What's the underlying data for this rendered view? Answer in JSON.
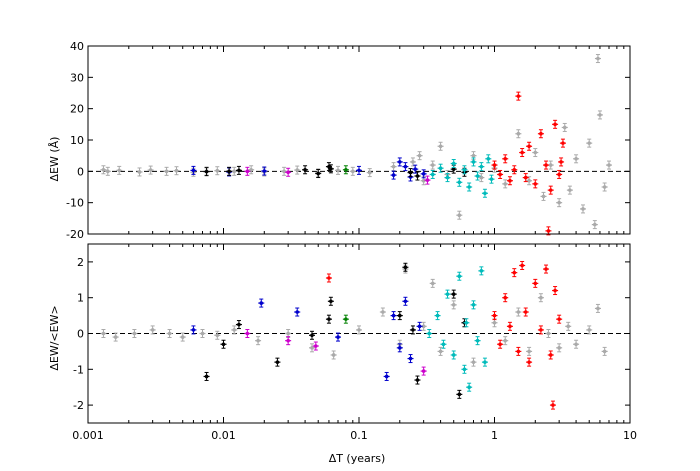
{
  "chart_data": [
    {
      "id": "top",
      "type": "scatter",
      "xscale": "log",
      "xlim": [
        0.001,
        10
      ],
      "ylim": [
        -20,
        40
      ],
      "yticks": [
        -20,
        -10,
        0,
        10,
        20,
        30,
        40
      ],
      "ylabel": "ΔEW (Å)",
      "reference_line": 0,
      "series": [
        {
          "color": "#aaaaaa",
          "points": [
            [
              0.0013,
              0.5
            ],
            [
              0.0014,
              0.0
            ],
            [
              0.0017,
              0.3
            ],
            [
              0.0024,
              -0.2
            ],
            [
              0.0029,
              0.4
            ],
            [
              0.0038,
              0.0
            ],
            [
              0.0045,
              0.2
            ],
            [
              0.006,
              -0.3
            ],
            [
              0.0075,
              0.1
            ],
            [
              0.009,
              0.2
            ],
            [
              0.012,
              0.0
            ],
            [
              0.016,
              0.5
            ],
            [
              0.02,
              -0.2
            ],
            [
              0.028,
              0.0
            ],
            [
              0.035,
              0.4
            ],
            [
              0.05,
              -0.5
            ],
            [
              0.07,
              0.3
            ],
            [
              0.09,
              0.0
            ],
            [
              0.12,
              -0.4
            ],
            [
              0.18,
              1.5
            ],
            [
              0.25,
              3.0
            ],
            [
              0.28,
              5.0
            ],
            [
              0.3,
              -3.0
            ],
            [
              0.35,
              2.0
            ],
            [
              0.4,
              8.0
            ],
            [
              0.45,
              -1.0
            ],
            [
              0.55,
              -14.0
            ],
            [
              0.7,
              5.0
            ],
            [
              0.8,
              -2.0
            ],
            [
              1.0,
              1.0
            ],
            [
              1.2,
              -4.0
            ],
            [
              1.5,
              12.0
            ],
            [
              1.8,
              -3.0
            ],
            [
              2.0,
              6.0
            ],
            [
              2.3,
              -8.0
            ],
            [
              2.6,
              2.0
            ],
            [
              3.0,
              -10.0
            ],
            [
              3.3,
              14.0
            ],
            [
              3.6,
              -6.0
            ],
            [
              4.0,
              4.0
            ],
            [
              4.5,
              -12.0
            ],
            [
              5.0,
              9.0
            ],
            [
              5.5,
              -17.0
            ],
            [
              5.8,
              36.0
            ],
            [
              6.0,
              18.0
            ],
            [
              6.5,
              -5.0
            ],
            [
              7.0,
              2.0
            ]
          ]
        },
        {
          "color": "#0000cc",
          "points": [
            [
              0.006,
              0.3
            ],
            [
              0.011,
              -0.2
            ],
            [
              0.02,
              0.1
            ],
            [
              0.1,
              0.3
            ],
            [
              0.18,
              -1.2
            ],
            [
              0.2,
              3.0
            ],
            [
              0.22,
              1.5
            ],
            [
              0.24,
              -1.8
            ],
            [
              0.26,
              0.7
            ],
            [
              0.3,
              -0.8
            ]
          ]
        },
        {
          "color": "#000000",
          "points": [
            [
              0.0075,
              -0.1
            ],
            [
              0.011,
              0.0
            ],
            [
              0.013,
              0.3
            ],
            [
              0.04,
              0.5
            ],
            [
              0.05,
              -0.7
            ],
            [
              0.06,
              1.5
            ],
            [
              0.062,
              0.8
            ],
            [
              0.24,
              -0.4
            ],
            [
              0.27,
              -1.5
            ],
            [
              0.5,
              0.7
            ],
            [
              0.6,
              -0.3
            ]
          ]
        },
        {
          "color": "#cc00cc",
          "points": [
            [
              0.015,
              0.0
            ],
            [
              0.03,
              -0.3
            ],
            [
              0.32,
              -2.8
            ]
          ]
        },
        {
          "color": "#008000",
          "points": [
            [
              0.08,
              0.5
            ]
          ]
        },
        {
          "color": "#00bbbb",
          "points": [
            [
              0.35,
              -1.0
            ],
            [
              0.4,
              1.0
            ],
            [
              0.45,
              -2.0
            ],
            [
              0.5,
              2.5
            ],
            [
              0.55,
              -3.5
            ],
            [
              0.6,
              0.5
            ],
            [
              0.65,
              -5.0
            ],
            [
              0.7,
              3.0
            ],
            [
              0.75,
              -1.5
            ],
            [
              0.8,
              1.5
            ],
            [
              0.85,
              -7.0
            ],
            [
              0.9,
              4.0
            ],
            [
              0.95,
              -2.5
            ]
          ]
        },
        {
          "color": "#ff0000",
          "points": [
            [
              1.0,
              2.0
            ],
            [
              1.1,
              -1.0
            ],
            [
              1.2,
              4.0
            ],
            [
              1.3,
              -3.0
            ],
            [
              1.5,
              24.0
            ],
            [
              1.6,
              6.0
            ],
            [
              1.7,
              -2.0
            ],
            [
              1.8,
              8.0
            ],
            [
              2.0,
              -4.0
            ],
            [
              2.2,
              12.0
            ],
            [
              2.4,
              2.0
            ],
            [
              2.6,
              -6.0
            ],
            [
              2.8,
              15.0
            ],
            [
              3.0,
              -1.0
            ],
            [
              3.2,
              9.0
            ],
            [
              2.5,
              -19.0
            ],
            [
              1.4,
              0.5
            ],
            [
              3.1,
              3.0
            ]
          ]
        }
      ]
    },
    {
      "id": "bottom",
      "type": "scatter",
      "xscale": "log",
      "xlim": [
        0.001,
        10
      ],
      "ylim": [
        -2.5,
        2.5
      ],
      "yticks": [
        -2,
        -1,
        0,
        1,
        2
      ],
      "xticks": [
        0.001,
        0.01,
        0.1,
        1,
        10
      ],
      "xticklabels": [
        "0.001",
        "0.01",
        "0.1",
        "1",
        "10"
      ],
      "xlabel": "ΔT (years)",
      "ylabel": "ΔEW/<EW>",
      "reference_line": 0,
      "series": [
        {
          "color": "#aaaaaa",
          "points": [
            [
              0.0013,
              0.0
            ],
            [
              0.0016,
              -0.1
            ],
            [
              0.0022,
              0.0
            ],
            [
              0.003,
              0.1
            ],
            [
              0.004,
              0.0
            ],
            [
              0.005,
              -0.1
            ],
            [
              0.007,
              0.0
            ],
            [
              0.009,
              -0.05
            ],
            [
              0.012,
              0.1
            ],
            [
              0.018,
              -0.2
            ],
            [
              0.03,
              0.0
            ],
            [
              0.045,
              -0.4
            ],
            [
              0.065,
              -0.6
            ],
            [
              0.1,
              0.1
            ],
            [
              0.15,
              0.6
            ],
            [
              0.2,
              -0.3
            ],
            [
              0.22,
              1.8
            ],
            [
              0.3,
              0.2
            ],
            [
              0.35,
              1.4
            ],
            [
              0.4,
              -0.5
            ],
            [
              0.5,
              0.8
            ],
            [
              0.7,
              -0.8
            ],
            [
              1.0,
              0.3
            ],
            [
              1.2,
              -0.2
            ],
            [
              1.5,
              0.6
            ],
            [
              1.8,
              -0.5
            ],
            [
              2.2,
              1.0
            ],
            [
              2.5,
              0.0
            ],
            [
              3.0,
              -0.4
            ],
            [
              3.5,
              0.2
            ],
            [
              4.0,
              -0.3
            ],
            [
              5.0,
              0.1
            ],
            [
              5.8,
              0.7
            ],
            [
              6.5,
              -0.5
            ]
          ]
        },
        {
          "color": "#0000cc",
          "points": [
            [
              0.006,
              0.1
            ],
            [
              0.019,
              0.85
            ],
            [
              0.035,
              0.6
            ],
            [
              0.07,
              -0.1
            ],
            [
              0.16,
              -1.2
            ],
            [
              0.18,
              0.5
            ],
            [
              0.2,
              -0.4
            ],
            [
              0.22,
              0.9
            ],
            [
              0.24,
              -0.7
            ],
            [
              0.28,
              0.2
            ]
          ]
        },
        {
          "color": "#000000",
          "points": [
            [
              0.0075,
              -1.2
            ],
            [
              0.01,
              -0.3
            ],
            [
              0.013,
              0.25
            ],
            [
              0.025,
              -0.8
            ],
            [
              0.045,
              -0.05
            ],
            [
              0.06,
              0.4
            ],
            [
              0.062,
              0.9
            ],
            [
              0.2,
              0.5
            ],
            [
              0.22,
              1.85
            ],
            [
              0.25,
              0.1
            ],
            [
              0.27,
              -1.3
            ],
            [
              0.5,
              1.1
            ],
            [
              0.55,
              -1.7
            ],
            [
              0.6,
              0.3
            ]
          ]
        },
        {
          "color": "#cc00cc",
          "points": [
            [
              0.015,
              0.0
            ],
            [
              0.03,
              -0.2
            ],
            [
              0.048,
              -0.35
            ],
            [
              0.3,
              -1.05
            ]
          ]
        },
        {
          "color": "#008000",
          "points": [
            [
              0.08,
              0.4
            ]
          ]
        },
        {
          "color": "#00bbbb",
          "points": [
            [
              0.33,
              0.0
            ],
            [
              0.38,
              0.5
            ],
            [
              0.42,
              -0.3
            ],
            [
              0.45,
              1.1
            ],
            [
              0.5,
              -0.6
            ],
            [
              0.55,
              1.6
            ],
            [
              0.6,
              -1.0
            ],
            [
              0.62,
              0.3
            ],
            [
              0.65,
              -1.5
            ],
            [
              0.7,
              0.8
            ],
            [
              0.75,
              -0.2
            ],
            [
              0.8,
              1.75
            ],
            [
              0.85,
              -0.8
            ]
          ]
        },
        {
          "color": "#ff0000",
          "points": [
            [
              0.06,
              1.55
            ],
            [
              1.0,
              0.5
            ],
            [
              1.1,
              -0.3
            ],
            [
              1.2,
              1.0
            ],
            [
              1.3,
              0.2
            ],
            [
              1.4,
              1.7
            ],
            [
              1.5,
              -0.5
            ],
            [
              1.6,
              1.9
            ],
            [
              1.7,
              0.6
            ],
            [
              1.8,
              -0.8
            ],
            [
              2.0,
              1.4
            ],
            [
              2.2,
              0.1
            ],
            [
              2.4,
              1.8
            ],
            [
              2.6,
              -0.6
            ],
            [
              2.7,
              -2.0
            ],
            [
              2.8,
              1.2
            ],
            [
              3.0,
              0.4
            ]
          ]
        }
      ]
    }
  ]
}
